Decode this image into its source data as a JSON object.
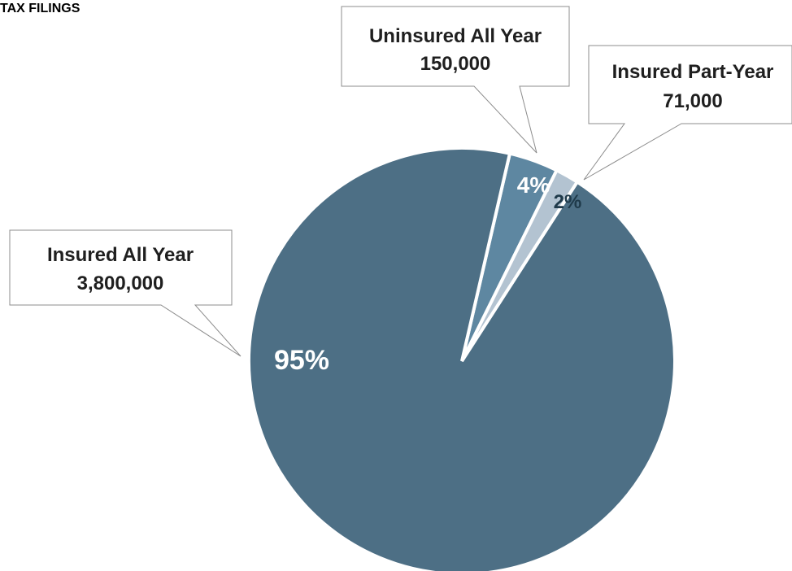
{
  "page": {
    "title": "TAX FILINGS"
  },
  "colors": {
    "insured_all_year": "#4D6F85",
    "uninsured_all_year": "#5E87A1",
    "insured_part_year": "#B3C3D1",
    "pct_light": "#ffffff",
    "pct_dark": "#1F3A4A",
    "callout_border": "#8C8C8C"
  },
  "chart_data": {
    "type": "pie",
    "title": "TAX FILINGS",
    "slices": [
      {
        "label": "Uninsured All Year",
        "value": 150000,
        "value_text": "150,000",
        "percent_text": "4%"
      },
      {
        "label": "Insured Part-Year",
        "value": 71000,
        "value_text": "71,000",
        "percent_text": "2%"
      },
      {
        "label": "Insured All Year",
        "value": 3800000,
        "value_text": "3,800,000",
        "percent_text": "95%"
      }
    ]
  }
}
